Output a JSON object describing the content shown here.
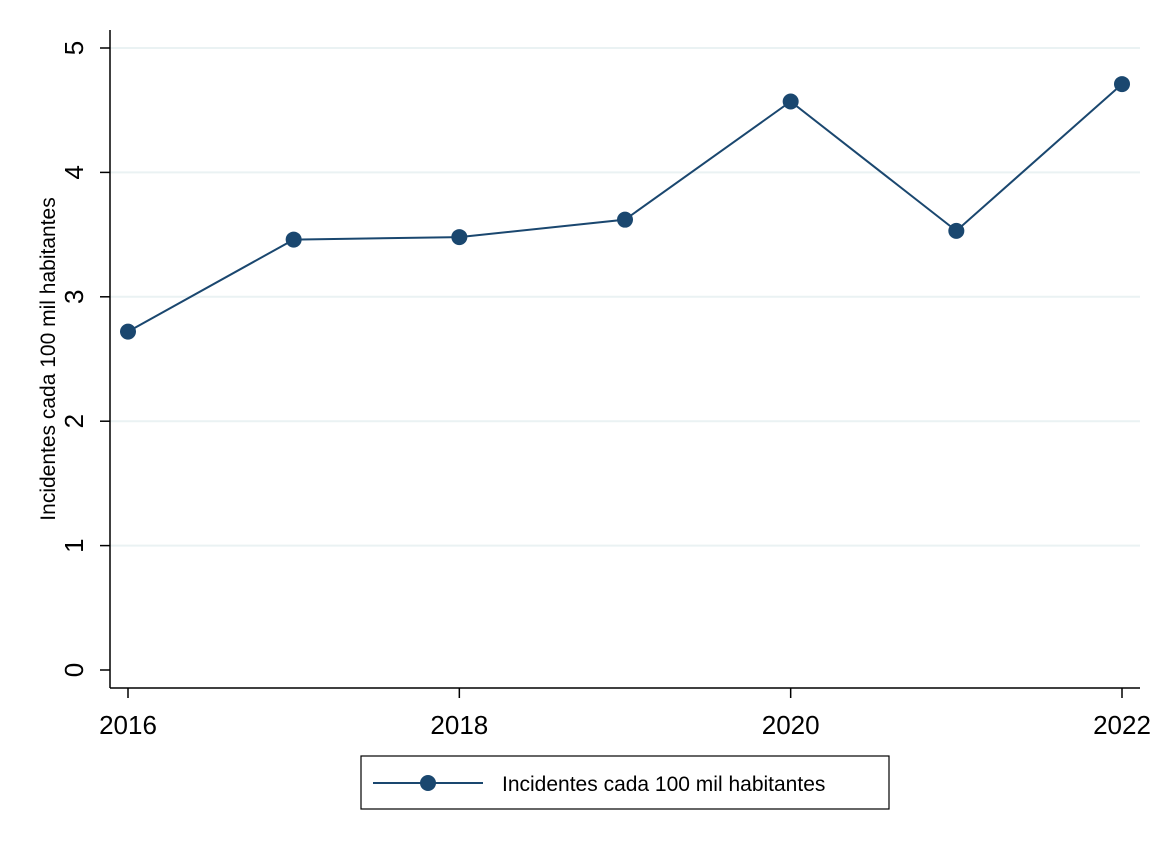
{
  "chart_data": {
    "type": "line",
    "title": "",
    "xlabel": "",
    "ylabel": "Incidentes cada 100 mil habitantes",
    "x": [
      2016,
      2017,
      2018,
      2019,
      2020,
      2021,
      2022
    ],
    "series": [
      {
        "name": "Incidentes cada 100 mil habitantes",
        "values": [
          2.72,
          3.46,
          3.48,
          3.62,
          4.57,
          3.53,
          4.71
        ],
        "color": "#1a476f",
        "marker": "circle"
      }
    ],
    "xlim": [
      2016,
      2022
    ],
    "ylim": [
      0,
      5
    ],
    "xticks": [
      "2016",
      "2018",
      "2020",
      "2022"
    ],
    "yticks": [
      "0",
      "1",
      "2",
      "3",
      "4",
      "5"
    ],
    "grid": true,
    "grid_color": "#eaf2f3",
    "legend_position": "bottom-center"
  }
}
